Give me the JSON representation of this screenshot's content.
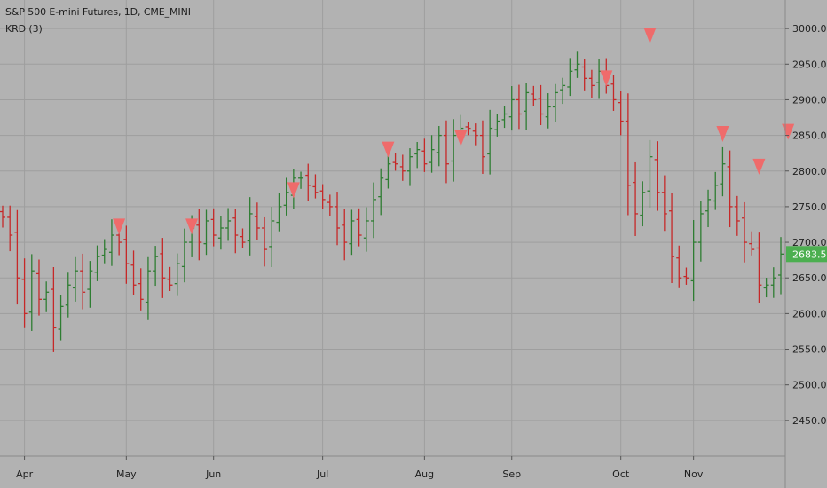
{
  "header": {
    "title": "S&P 500 E-mini Futures, 1D, CME_MINI",
    "indicator": "KRD (3)"
  },
  "colors": {
    "background": "#b2b2b2",
    "grid": "#9e9e9e",
    "up": "#2e7d32",
    "down": "#c62828",
    "marker": "#ef6b6b",
    "price_badge": "#4caf50",
    "axis_text": "#1e1e1e"
  },
  "chart_data": {
    "type": "ohlc",
    "title": "S&P 500 E-mini Futures, 1D, CME_MINI",
    "indicator": "KRD (3)",
    "ylim": [
      2400,
      3040
    ],
    "y_ticks": [
      "3000.00",
      "2950.00",
      "2900.00",
      "2850.00",
      "2800.00",
      "2750.00",
      "2700.00",
      "2650.00",
      "2600.00",
      "2550.00",
      "2500.00",
      "2450.00"
    ],
    "x_ticks": [
      "Apr",
      "May",
      "Jun",
      "Jul",
      "Aug",
      "Sep",
      "Oct",
      "Nov"
    ],
    "last_price": "2683.50",
    "grid": true,
    "series": [
      {
        "name": "S&P 500 E-mini Futures",
        "closes": [
          2735,
          2710,
          2650,
          2600,
          2660,
          2620,
          2630,
          2580,
          2610,
          2640,
          2660,
          2630,
          2660,
          2680,
          2690,
          2710,
          2700,
          2670,
          2640,
          2620,
          2660,
          2680,
          2650,
          2640,
          2670,
          2700,
          2720,
          2700,
          2730,
          2710,
          2720,
          2730,
          2710,
          2700,
          2740,
          2720,
          2690,
          2730,
          2750,
          2770,
          2790,
          2790,
          2780,
          2770,
          2760,
          2750,
          2720,
          2700,
          2730,
          2710,
          2730,
          2760,
          2790,
          2810,
          2810,
          2800,
          2820,
          2830,
          2810,
          2830,
          2850,
          2810,
          2850,
          2860,
          2860,
          2850,
          2820,
          2860,
          2870,
          2880,
          2900,
          2880,
          2910,
          2900,
          2880,
          2890,
          2910,
          2920,
          2940,
          2950,
          2930,
          2920,
          2940,
          2920,
          2900,
          2870,
          2780,
          2740,
          2770,
          2820,
          2770,
          2740,
          2680,
          2650,
          2650,
          2700,
          2740,
          2760,
          2780,
          2810,
          2750,
          2730,
          2700,
          2690,
          2640,
          2640,
          2650,
          2683.5
        ]
      }
    ],
    "markers": [
      {
        "label": "KRD",
        "date_index": 16,
        "value": 2722
      },
      {
        "label": "KRD",
        "date_index": 26,
        "value": 2722
      },
      {
        "label": "KRD",
        "date_index": 40,
        "value": 2773
      },
      {
        "label": "KRD",
        "date_index": 53,
        "value": 2830
      },
      {
        "label": "KRD",
        "date_index": 63,
        "value": 2846
      },
      {
        "label": "KRD",
        "date_index": 83,
        "value": 2930
      },
      {
        "label": "KRD",
        "date_index": 89,
        "value": 2990
      },
      {
        "label": "KRD",
        "date_index": 99,
        "value": 2852
      },
      {
        "label": "KRD",
        "date_index": 104,
        "value": 2806
      },
      {
        "label": "KRD",
        "date_index": 108,
        "value": 2855
      }
    ]
  }
}
